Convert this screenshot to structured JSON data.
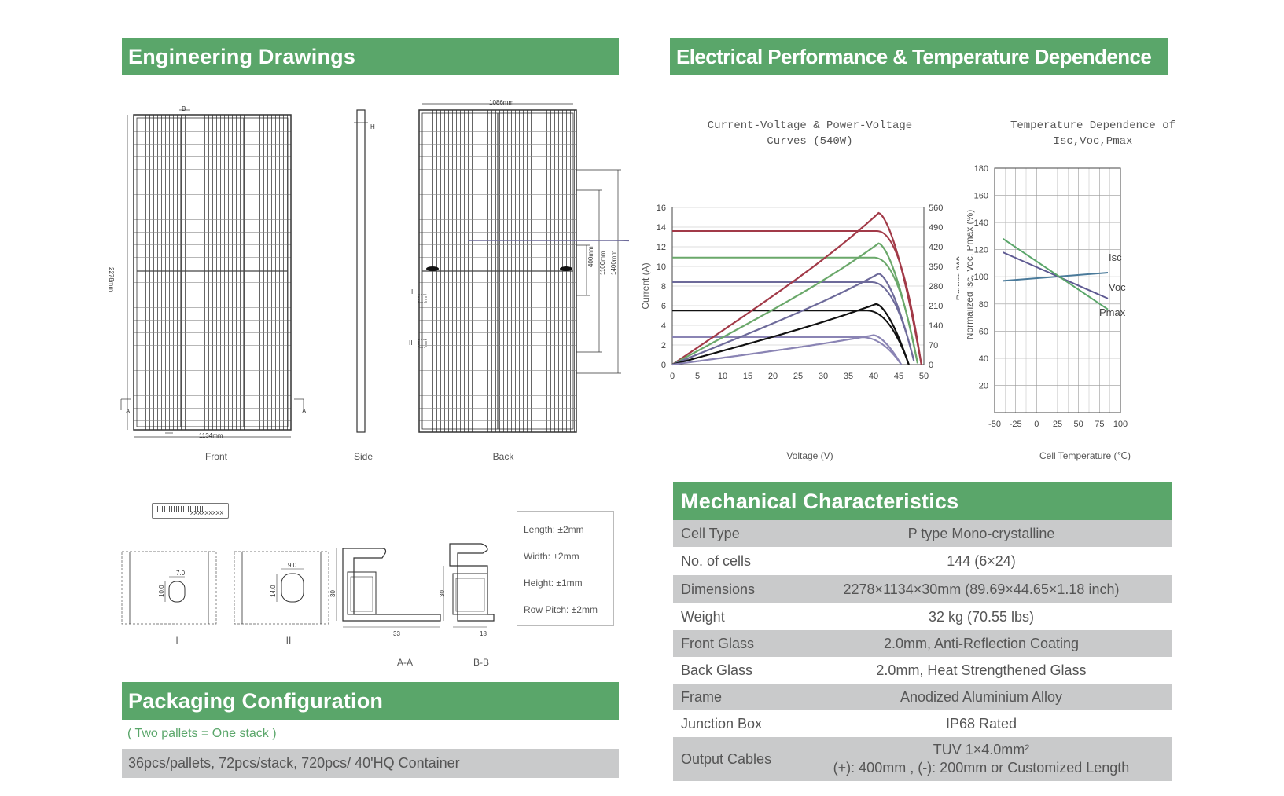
{
  "headers": {
    "engineering": "Engineering Drawings",
    "electrical": "Electrical Performance & Temperature Dependence",
    "mechanical": "Mechanical Characteristics",
    "packaging": "Packaging Configuration"
  },
  "drawings": {
    "front_label": "Front",
    "side_label": "Side",
    "back_label": "Back",
    "dim_width_front": "1134mm",
    "dim_height": "2278mm",
    "dim_width_back": "1086mm",
    "dim_400": "400mm",
    "dim_1100": "1100mm",
    "dim_1400": "1400mm",
    "mark_A": "A",
    "mark_B": "B",
    "mark_H": "H",
    "mark_I": "I",
    "mark_II": "II",
    "barcode_text": "XXXXXXXXX",
    "detail_I_label": "I",
    "detail_II_label": "II",
    "detail_I_w": "7.0",
    "detail_I_h": "10.0",
    "detail_II_w": "9.0",
    "detail_II_h": "14.0",
    "aa_label": "A-A",
    "bb_label": "B-B",
    "aa_height": "30",
    "aa_width": "33",
    "bb_height": "30",
    "bb_width": "18"
  },
  "tolerances": [
    "Length: ±2mm",
    "Width: ±2mm",
    "Height: ±1mm",
    "Row Pitch: ±2mm"
  ],
  "iv_chart": {
    "title_line1": "Current-Voltage & Power-Voltage",
    "title_line2": "Curves (540W)",
    "xlabel": "Voltage (V)",
    "ylabel_left": "Current (A)",
    "ylabel_right": "Power (W)",
    "x_ticks": [
      "0",
      "5",
      "10",
      "15",
      "20",
      "25",
      "30",
      "35",
      "40",
      "45",
      "50"
    ],
    "y_left_ticks": [
      "0",
      "2",
      "4",
      "6",
      "8",
      "10",
      "12",
      "14",
      "16"
    ],
    "y_right_ticks": [
      "0",
      "70",
      "140",
      "210",
      "280",
      "350",
      "420",
      "490",
      "560"
    ]
  },
  "temp_chart": {
    "title_line1": "Temperature Dependence of",
    "title_line2": "Isc,Voc,Pmax",
    "xlabel": "Cell Temperature (℃)",
    "ylabel": "Normalized Isc, Voc, Pmax (%)",
    "x_ticks": [
      "-50",
      "-25",
      "0",
      "25",
      "50",
      "75",
      "100"
    ],
    "y_ticks": [
      "20",
      "40",
      "60",
      "80",
      "100",
      "120",
      "140",
      "160",
      "180"
    ],
    "series_labels": [
      "Isc",
      "Voc",
      "Pmax"
    ]
  },
  "chart_data": [
    {
      "type": "line",
      "title": "Current-Voltage & Power-Voltage Curves (540W)",
      "xlabel": "Voltage (V)",
      "ylabel": "Current (A)",
      "y2label": "Power (W)",
      "xlim": [
        0,
        50
      ],
      "ylim": [
        0,
        16
      ],
      "y2lim": [
        0,
        560
      ],
      "grid": true,
      "series": [
        {
          "axis": "current",
          "color": "#a23a48",
          "isc": 13.6,
          "voc": 49.5
        },
        {
          "axis": "current",
          "color": "#6aa86a",
          "isc": 10.9,
          "voc": 48.8
        },
        {
          "axis": "current",
          "color": "#6d6a9a",
          "isc": 8.4,
          "voc": 48.2
        },
        {
          "axis": "current",
          "color": "#111111",
          "isc": 5.5,
          "voc": 47.0
        },
        {
          "axis": "current",
          "color": "#8a84b4",
          "isc": 2.8,
          "voc": 45.5
        },
        {
          "axis": "power",
          "color": "#a23a48",
          "pmax": 540,
          "vmp": 41.0,
          "voc": 49.5
        },
        {
          "axis": "power",
          "color": "#6aa86a",
          "pmax": 432,
          "vmp": 41.0,
          "voc": 48.8
        },
        {
          "axis": "power",
          "color": "#6d6a9a",
          "pmax": 324,
          "vmp": 41.0,
          "voc": 48.2
        },
        {
          "axis": "power",
          "color": "#111111",
          "pmax": 216,
          "vmp": 40.5,
          "voc": 47.0
        },
        {
          "axis": "power",
          "color": "#8a84b4",
          "pmax": 105,
          "vmp": 40.0,
          "voc": 45.5
        }
      ]
    },
    {
      "type": "line",
      "title": "Temperature Dependence of Isc,Voc,Pmax",
      "xlabel": "Cell Temperature (℃)",
      "ylabel": "Normalized Isc, Voc, Pmax (%)",
      "xlim": [
        -50,
        100
      ],
      "ylim": [
        0,
        180
      ],
      "grid": true,
      "series": [
        {
          "name": "Isc",
          "color": "#4a7a9a",
          "x": [
            -40,
            85
          ],
          "y": [
            97,
            103
          ]
        },
        {
          "name": "Voc",
          "color": "#5e5a92",
          "x": [
            -40,
            85
          ],
          "y": [
            118,
            84
          ]
        },
        {
          "name": "Pmax",
          "color": "#5aa66a",
          "x": [
            -40,
            85
          ],
          "y": [
            128,
            76
          ]
        }
      ]
    }
  ],
  "mechanical": [
    {
      "key": "Cell  Type",
      "value": "P type Mono-crystalline"
    },
    {
      "key": "No. of cells",
      "value": "144 (6×24)"
    },
    {
      "key": "Dimensions",
      "value": "2278×1134×30mm (89.69×44.65×1.18 inch)"
    },
    {
      "key": "Weight",
      "value": "32 kg (70.55 lbs)"
    },
    {
      "key": "Front Glass",
      "value": "2.0mm, Anti-Reflection Coating"
    },
    {
      "key": "Back Glass",
      "value": "2.0mm, Heat Strengthened Glass"
    },
    {
      "key": "Frame",
      "value": "Anodized Aluminium Alloy"
    },
    {
      "key": "Junction Box",
      "value": "IP68 Rated"
    },
    {
      "key": "Output Cables",
      "value_line1": "TUV  1×4.0mm²",
      "value_line2": "(+): 400mm , (-): 200mm or Customized Length"
    }
  ],
  "packaging": {
    "note": "( Two pallets = One stack )",
    "detail": "36pcs/pallets, 72pcs/stack, 720pcs/ 40'HQ Container"
  }
}
